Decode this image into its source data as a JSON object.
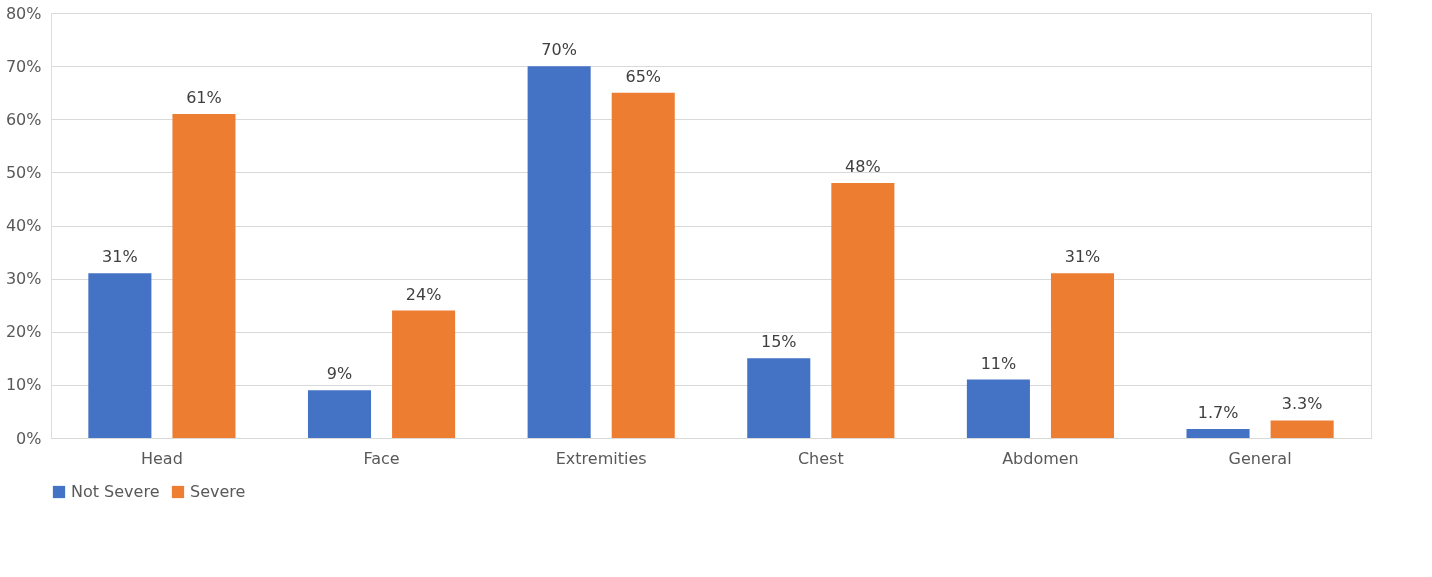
{
  "chart_data": {
    "type": "bar",
    "categories": [
      "Head",
      "Face",
      "Extremities",
      "Chest",
      "Abdomen",
      "General"
    ],
    "series": [
      {
        "name": "Not Severe",
        "color": "#4472c4",
        "values": [
          31,
          9,
          70,
          15,
          11,
          1.7
        ],
        "value_labels": [
          "31%",
          "9%",
          "70%",
          "15%",
          "11%",
          "1.7%"
        ]
      },
      {
        "name": "Severe",
        "color": "#ed7d31",
        "values": [
          61,
          24,
          65,
          48,
          31,
          3.3
        ],
        "value_labels": [
          "61%",
          "24%",
          "65%",
          "48%",
          "31%",
          "3.3%"
        ]
      }
    ],
    "ylim": [
      0,
      80
    ],
    "yticks": [
      {
        "value": 0,
        "label": "0%"
      },
      {
        "value": 10,
        "label": "10%"
      },
      {
        "value": 20,
        "label": "20%"
      },
      {
        "value": 30,
        "label": "30%"
      },
      {
        "value": 40,
        "label": "40%"
      },
      {
        "value": 50,
        "label": "50%"
      },
      {
        "value": 60,
        "label": "60%"
      },
      {
        "value": 70,
        "label": "70%"
      },
      {
        "value": 80,
        "label": "80%"
      }
    ],
    "grid": "y",
    "legend": "bottom"
  }
}
